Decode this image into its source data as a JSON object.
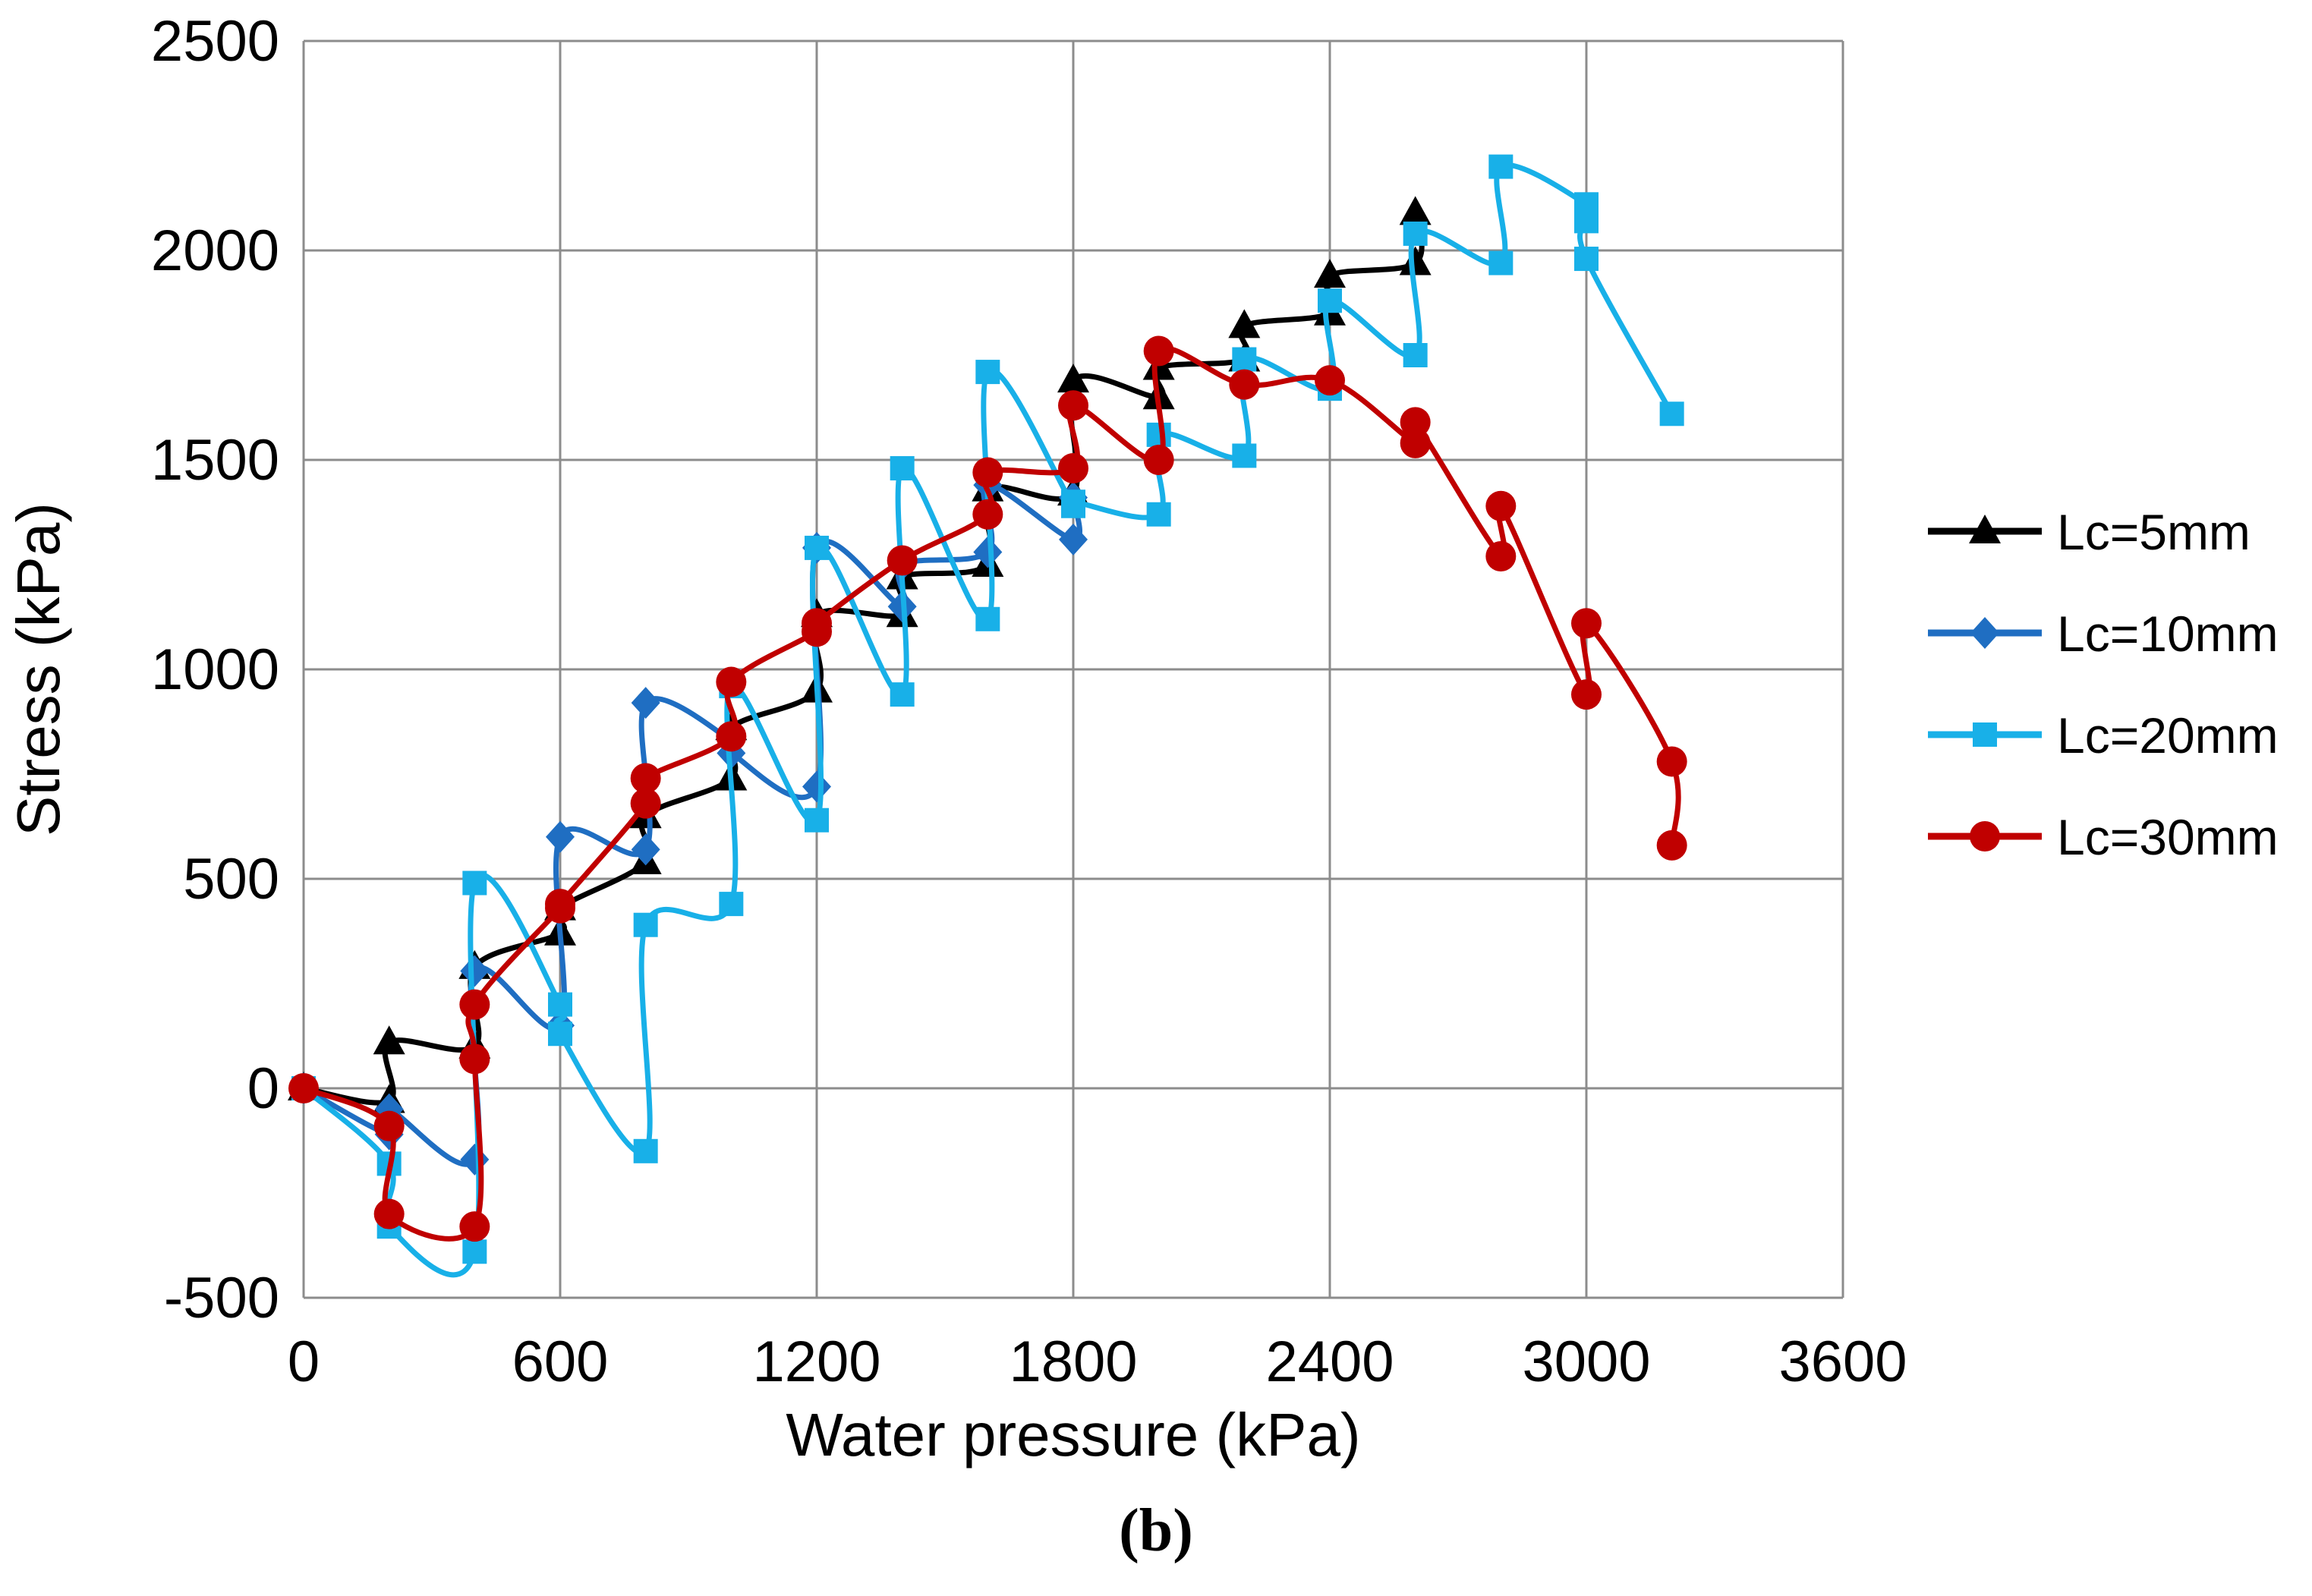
{
  "caption": "(b)",
  "chart_data": {
    "type": "line",
    "title": "",
    "xlabel": "Water pressure (kPa)",
    "ylabel": "Stress (kPa)",
    "xlim": [
      0,
      3600
    ],
    "ylim": [
      -500,
      2500
    ],
    "xticks": [
      0,
      600,
      1200,
      1800,
      2400,
      3000,
      3600
    ],
    "yticks": [
      -500,
      0,
      500,
      1000,
      1500,
      2000,
      2500
    ],
    "grid": true,
    "legend": "right",
    "series": [
      {
        "name": "Lc=5mm",
        "color": "#000000",
        "marker": "triangle",
        "points": [
          [
            0,
            0
          ],
          [
            200,
            -30
          ],
          [
            200,
            110
          ],
          [
            400,
            100
          ],
          [
            400,
            290
          ],
          [
            600,
            370
          ],
          [
            600,
            430
          ],
          [
            800,
            540
          ],
          [
            800,
            650
          ],
          [
            1000,
            740
          ],
          [
            1000,
            860
          ],
          [
            1200,
            950
          ],
          [
            1200,
            1130
          ],
          [
            1400,
            1130
          ],
          [
            1400,
            1220
          ],
          [
            1600,
            1250
          ],
          [
            1600,
            1430
          ],
          [
            1800,
            1420
          ],
          [
            1800,
            1690
          ],
          [
            2000,
            1650
          ],
          [
            2000,
            1720
          ],
          [
            2200,
            1740
          ],
          [
            2200,
            1820
          ],
          [
            2400,
            1850
          ],
          [
            2400,
            1940
          ],
          [
            2600,
            1970
          ],
          [
            2600,
            2090
          ]
        ]
      },
      {
        "name": "Lc=10mm",
        "color": "#1F6EC2",
        "marker": "diamond",
        "points": [
          [
            0,
            0
          ],
          [
            200,
            -110
          ],
          [
            200,
            -50
          ],
          [
            400,
            -170
          ],
          [
            400,
            280
          ],
          [
            600,
            150
          ],
          [
            600,
            600
          ],
          [
            800,
            570
          ],
          [
            800,
            920
          ],
          [
            1000,
            830
          ],
          [
            1000,
            800
          ],
          [
            1200,
            720
          ],
          [
            1200,
            1290
          ],
          [
            1400,
            1150
          ],
          [
            1400,
            1250
          ],
          [
            1600,
            1280
          ],
          [
            1600,
            1440
          ],
          [
            1800,
            1310
          ],
          [
            1800,
            1410
          ]
        ]
      },
      {
        "name": "Lc=20mm",
        "color": "#18B0E8",
        "marker": "square",
        "points": [
          [
            0,
            0
          ],
          [
            200,
            -180
          ],
          [
            200,
            -330
          ],
          [
            400,
            -390
          ],
          [
            400,
            490
          ],
          [
            600,
            200
          ],
          [
            600,
            130
          ],
          [
            800,
            -150
          ],
          [
            800,
            390
          ],
          [
            1000,
            440
          ],
          [
            1000,
            960
          ],
          [
            1200,
            640
          ],
          [
            1200,
            1290
          ],
          [
            1400,
            940
          ],
          [
            1400,
            1480
          ],
          [
            1600,
            1120
          ],
          [
            1600,
            1710
          ],
          [
            1800,
            1390
          ],
          [
            1800,
            1400
          ],
          [
            2000,
            1370
          ],
          [
            2000,
            1560
          ],
          [
            2200,
            1510
          ],
          [
            2200,
            1740
          ],
          [
            2400,
            1670
          ],
          [
            2400,
            1880
          ],
          [
            2600,
            1750
          ],
          [
            2600,
            2040
          ],
          [
            2800,
            1970
          ],
          [
            2800,
            2200
          ],
          [
            3000,
            2110
          ],
          [
            3000,
            2070
          ],
          [
            3000,
            1980
          ],
          [
            3200,
            1610
          ]
        ]
      },
      {
        "name": "Lc=30mm",
        "color": "#C00000",
        "marker": "circle",
        "points": [
          [
            0,
            0
          ],
          [
            200,
            -90
          ],
          [
            200,
            -300
          ],
          [
            400,
            -330
          ],
          [
            400,
            70
          ],
          [
            400,
            200
          ],
          [
            600,
            430
          ],
          [
            600,
            440
          ],
          [
            800,
            680
          ],
          [
            800,
            740
          ],
          [
            1000,
            840
          ],
          [
            1000,
            970
          ],
          [
            1200,
            1090
          ],
          [
            1200,
            1110
          ],
          [
            1400,
            1260
          ],
          [
            1600,
            1370
          ],
          [
            1600,
            1470
          ],
          [
            1800,
            1480
          ],
          [
            1800,
            1630
          ],
          [
            2000,
            1500
          ],
          [
            2000,
            1760
          ],
          [
            2200,
            1680
          ],
          [
            2400,
            1690
          ],
          [
            2600,
            1540
          ],
          [
            2600,
            1590
          ],
          [
            2800,
            1270
          ],
          [
            2800,
            1390
          ],
          [
            3000,
            940
          ],
          [
            3000,
            1110
          ],
          [
            3200,
            780
          ],
          [
            3200,
            580
          ]
        ]
      }
    ]
  }
}
